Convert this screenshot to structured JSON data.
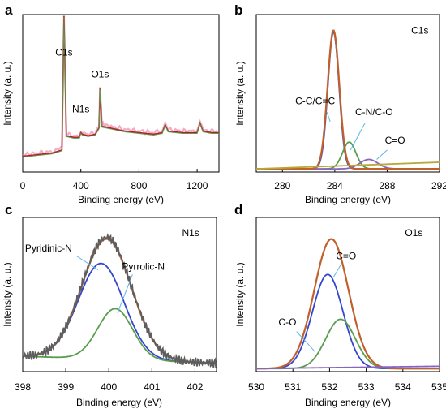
{
  "chart_data": [
    {
      "type": "line",
      "panel_label": "a",
      "xlabel": "Binding energy (eV)",
      "ylabel": "Intensity (a. u.)",
      "xlim": [
        0,
        1350
      ],
      "ylim": [
        0,
        1
      ],
      "xticks": [
        "0",
        "400",
        "800",
        "1200"
      ],
      "xtick_values": [
        0,
        400,
        800,
        1200
      ],
      "annotations": [
        {
          "text": "C1s",
          "x": 284,
          "y": 0.74
        },
        {
          "text": "N1s",
          "x": 400,
          "y": 0.38
        },
        {
          "text": "O1s",
          "x": 532,
          "y": 0.6
        }
      ],
      "series": [
        {
          "color": "#8a3a1e",
          "x": [
            0,
            100,
            200,
            270,
            284,
            300,
            350,
            390,
            400,
            410,
            450,
            500,
            525,
            532,
            545,
            600,
            700,
            800,
            900,
            960,
            980,
            1000,
            1100,
            1200,
            1220,
            1240,
            1300,
            1350
          ],
          "y": [
            0.1,
            0.11,
            0.12,
            0.14,
            0.99,
            0.23,
            0.22,
            0.22,
            0.25,
            0.24,
            0.23,
            0.24,
            0.28,
            0.53,
            0.29,
            0.28,
            0.26,
            0.25,
            0.24,
            0.25,
            0.3,
            0.26,
            0.25,
            0.25,
            0.31,
            0.26,
            0.25,
            0.25
          ]
        }
      ]
    },
    {
      "type": "line",
      "panel_label": "b",
      "xlabel": "Binding energy (eV)",
      "ylabel": "Intensity (a. u.)",
      "xlim": [
        278,
        292
      ],
      "ylim": [
        0,
        1
      ],
      "xticks": [
        "280",
        "284",
        "288",
        "292"
      ],
      "xtick_values": [
        280,
        284,
        288,
        292
      ],
      "annotations": [
        {
          "text": "C1s",
          "x": 290.5,
          "y": 0.88
        },
        {
          "text": "C-C/C=C",
          "x": 282.5,
          "y": 0.43
        },
        {
          "text": "C-N/C-O",
          "x": 287.0,
          "y": 0.36
        },
        {
          "text": "C=O",
          "x": 288.6,
          "y": 0.18
        }
      ],
      "series": [
        {
          "color": "#3346cc",
          "peak_center": 283.9,
          "peak_height": 0.87,
          "peak_fwhm": 1.0
        },
        {
          "color": "#5a9c4e",
          "peak_center": 285.1,
          "peak_height": 0.17,
          "peak_fwhm": 1.2
        },
        {
          "color": "#8a63c0",
          "peak_center": 286.6,
          "peak_height": 0.06,
          "peak_fwhm": 1.6
        },
        {
          "color": "#c0602a",
          "peak_center": 283.9,
          "peak_height": 0.88,
          "peak_fwhm": 1.05
        },
        {
          "color": "#b8a83a",
          "peak_center": 0,
          "peak_height": 0,
          "peak_fwhm": 1
        }
      ]
    },
    {
      "type": "line",
      "panel_label": "c",
      "xlabel": "Binding energy (eV)",
      "ylabel": "Intensity (a. u.)",
      "xlim": [
        398,
        402.5
      ],
      "ylim": [
        0,
        1
      ],
      "xticks": [
        "398",
        "399",
        "400",
        "401",
        "402"
      ],
      "xtick_values": [
        398,
        399,
        400,
        401,
        402
      ],
      "annotations": [
        {
          "text": "N1s",
          "x": 401.9,
          "y": 0.88
        },
        {
          "text": "Pyridinic-N",
          "x": 398.6,
          "y": 0.78
        },
        {
          "text": "Pyrrolic-N",
          "x": 400.8,
          "y": 0.66
        }
      ],
      "series": [
        {
          "color": "#3346cc",
          "peak_center": 399.82,
          "peak_height": 0.62,
          "peak_fwhm": 1.25
        },
        {
          "color": "#5a9c4e",
          "peak_center": 400.15,
          "peak_height": 0.33,
          "peak_fwhm": 0.95
        },
        {
          "color": "#c0602a",
          "peak_center": 399.95,
          "peak_height": 0.78,
          "peak_fwhm": 1.35
        },
        {
          "color": "#5e5e5e",
          "peak_center": 399.95,
          "peak_height": 0.79,
          "peak_fwhm": 1.35
        }
      ]
    },
    {
      "type": "line",
      "panel_label": "d",
      "xlabel": "Binding energy (eV)",
      "ylabel": "Intensity (a. u.)",
      "xlim": [
        530,
        535
      ],
      "ylim": [
        0,
        1
      ],
      "xticks": [
        "530",
        "531",
        "532",
        "533",
        "534",
        "535"
      ],
      "xtick_values": [
        530,
        531,
        532,
        533,
        534,
        535
      ],
      "annotations": [
        {
          "text": "O1s",
          "x": 534.3,
          "y": 0.88
        },
        {
          "text": "C=O",
          "x": 532.45,
          "y": 0.73
        },
        {
          "text": "C-O",
          "x": 530.85,
          "y": 0.3
        }
      ],
      "series": [
        {
          "color": "#3346cc",
          "peak_center": 531.95,
          "peak_height": 0.61,
          "peak_fwhm": 0.98
        },
        {
          "color": "#5a9c4e",
          "peak_center": 532.3,
          "peak_height": 0.32,
          "peak_fwhm": 0.95
        },
        {
          "color": "#c0602a",
          "peak_center": 532.05,
          "peak_height": 0.84,
          "peak_fwhm": 1.1
        },
        {
          "color": "#8a63c0",
          "peak_center": 0,
          "peak_height": 0,
          "peak_fwhm": 1
        }
      ]
    }
  ]
}
